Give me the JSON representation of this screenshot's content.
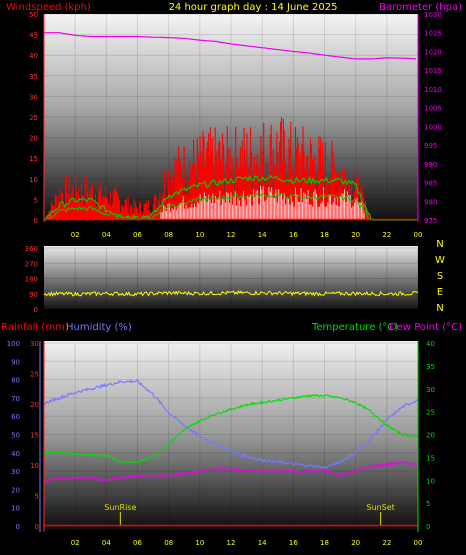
{
  "title": "24 hour graph day : 14 June 2025",
  "x_ticks": [
    "02",
    "04",
    "06",
    "08",
    "10",
    "12",
    "14",
    "16",
    "18",
    "20",
    "22",
    "00"
  ],
  "colors": {
    "wind": "#ff0000",
    "gust": "#00cc00",
    "dir_bars": "#ffffff",
    "baro": "#ee00ee",
    "wind_dir": "#ffff00",
    "humidity": "#7777ff",
    "temperature": "#00dd00",
    "dewpoint": "#ee00ee",
    "rainfall": "#ff0000",
    "sun_marker": "#dddd00"
  },
  "chart_data": [
    {
      "type": "line",
      "ylabel_left": "Windspeed (kph)",
      "ylabel_right": "Barometer (hpa)",
      "yticks_left": [
        "0",
        "5",
        "10",
        "15",
        "20",
        "25",
        "30",
        "35",
        "40",
        "45",
        "50"
      ],
      "yticks_right": [
        "975",
        "980",
        "985",
        "990",
        "995",
        "1000",
        "1005",
        "1010",
        "1015",
        "1020",
        "1025",
        "1030"
      ],
      "xlim": [
        0,
        24
      ],
      "ylim_left": [
        0,
        50
      ],
      "ylim_right": [
        975,
        1030
      ],
      "series": [
        {
          "key": "barometer",
          "axis": "right",
          "x": [
            0,
            1,
            2,
            3,
            4,
            5,
            6,
            7,
            8,
            9,
            10,
            11,
            12,
            13,
            14,
            15,
            16,
            17,
            18,
            19,
            20,
            21,
            22,
            23,
            24
          ],
          "values": [
            1025,
            1025,
            1024.3,
            1024,
            1024,
            1024,
            1024,
            1023.8,
            1023.7,
            1023.5,
            1023,
            1022.7,
            1022,
            1021.5,
            1021,
            1020.5,
            1020,
            1019.6,
            1019,
            1018.5,
            1018,
            1018,
            1018.3,
            1018.2,
            1018
          ]
        },
        {
          "key": "wind_avg",
          "axis": "left",
          "x": [
            0,
            1,
            2,
            3,
            4,
            5,
            6,
            7,
            8,
            9,
            10,
            11,
            12,
            13,
            14,
            15,
            16,
            17,
            18,
            19,
            20,
            21,
            22,
            23,
            24
          ],
          "values": [
            0,
            3,
            4,
            4,
            2,
            1,
            0.5,
            1,
            5,
            6,
            7,
            7.5,
            8,
            8.5,
            8.5,
            8.5,
            8,
            8,
            8,
            8,
            7,
            0,
            0,
            0,
            0
          ]
        },
        {
          "key": "wind_gust",
          "axis": "left",
          "x": [
            0,
            1,
            2,
            3,
            4,
            5,
            6,
            7,
            8,
            9,
            10,
            11,
            12,
            13,
            14,
            15,
            16,
            17,
            18,
            19,
            20,
            21,
            22,
            23,
            24
          ],
          "values": [
            0,
            9,
            10,
            10,
            8,
            6,
            4,
            5,
            15,
            17,
            19,
            20,
            20,
            21,
            22,
            23,
            21,
            20,
            18,
            16,
            12,
            0,
            0,
            0,
            0
          ]
        }
      ]
    },
    {
      "type": "line",
      "ylabel_right_ticks": [
        "N",
        "W",
        "S",
        "E",
        "N"
      ],
      "yticks_left": [
        "0",
        "90",
        "180",
        "270",
        "360"
      ],
      "ylim": [
        0,
        360
      ],
      "xlim": [
        0,
        24
      ],
      "series": [
        {
          "key": "wind_direction",
          "x": [
            0,
            2,
            4,
            6,
            8,
            10,
            12,
            14,
            16,
            18,
            20,
            22,
            24
          ],
          "values": [
            90,
            88,
            92,
            88,
            95,
            92,
            95,
            95,
            92,
            90,
            92,
            90,
            92
          ]
        }
      ]
    },
    {
      "type": "line",
      "ylabel_left_outer": "Rainfall (mm)",
      "ylabel_left_inner": "Humidity (%)",
      "ylabel_right": "Temperature (°C)",
      "ylabel_right2": "Dew Point (°C)",
      "yticks_humidity": [
        "0",
        "10",
        "20",
        "30",
        "40",
        "50",
        "60",
        "70",
        "80",
        "90",
        "100"
      ],
      "yticks_rain": [
        "0",
        "5",
        "10",
        "15",
        "20",
        "25",
        "30"
      ],
      "yticks_temp": [
        "0",
        "5",
        "10",
        "15",
        "20",
        "25",
        "30",
        "35",
        "40"
      ],
      "ylim_humidity": [
        0,
        100
      ],
      "ylim_rain": [
        0,
        30
      ],
      "ylim_temp": [
        0,
        40
      ],
      "xlim": [
        0,
        24
      ],
      "annotations": [
        {
          "text": "SunRise",
          "x": 4.9
        },
        {
          "text": "SunSet",
          "x": 21.6
        }
      ],
      "series": [
        {
          "key": "humidity",
          "axis": "humidity",
          "x": [
            0,
            1,
            2,
            3,
            4,
            5,
            6,
            7,
            8,
            9,
            10,
            11,
            12,
            13,
            14,
            15,
            16,
            17,
            18,
            19,
            20,
            21,
            22,
            23,
            24
          ],
          "values": [
            67,
            70,
            73,
            75,
            77,
            79,
            79,
            72,
            62,
            55,
            49,
            45,
            41,
            38,
            36,
            35,
            34,
            33,
            32,
            35,
            40,
            48,
            58,
            65,
            69
          ]
        },
        {
          "key": "temperature",
          "axis": "temp",
          "x": [
            0,
            1,
            2,
            3,
            4,
            5,
            6,
            7,
            8,
            9,
            10,
            11,
            12,
            13,
            14,
            15,
            16,
            17,
            18,
            19,
            20,
            21,
            22,
            23,
            24
          ],
          "values": [
            16,
            16,
            15.8,
            15.5,
            15.3,
            14,
            14,
            15,
            18,
            21,
            23,
            24.5,
            25.5,
            26.5,
            27,
            27.5,
            28,
            28.5,
            28.5,
            28,
            27,
            25,
            22,
            20,
            19.5
          ]
        },
        {
          "key": "dewpoint",
          "axis": "temp",
          "x": [
            0,
            1,
            2,
            3,
            4,
            5,
            6,
            7,
            8,
            9,
            10,
            11,
            12,
            13,
            14,
            15,
            16,
            17,
            18,
            19,
            20,
            21,
            22,
            23,
            24
          ],
          "values": [
            10,
            10.3,
            10.5,
            10.5,
            10,
            10.5,
            11,
            11,
            11,
            11.5,
            12,
            12.5,
            12.5,
            12,
            12,
            12,
            12,
            12,
            12,
            11,
            12,
            13,
            13.5,
            13.8,
            13.5
          ]
        },
        {
          "key": "rainfall",
          "axis": "rain",
          "x": [
            0,
            24
          ],
          "values": [
            0,
            0
          ]
        }
      ]
    }
  ]
}
